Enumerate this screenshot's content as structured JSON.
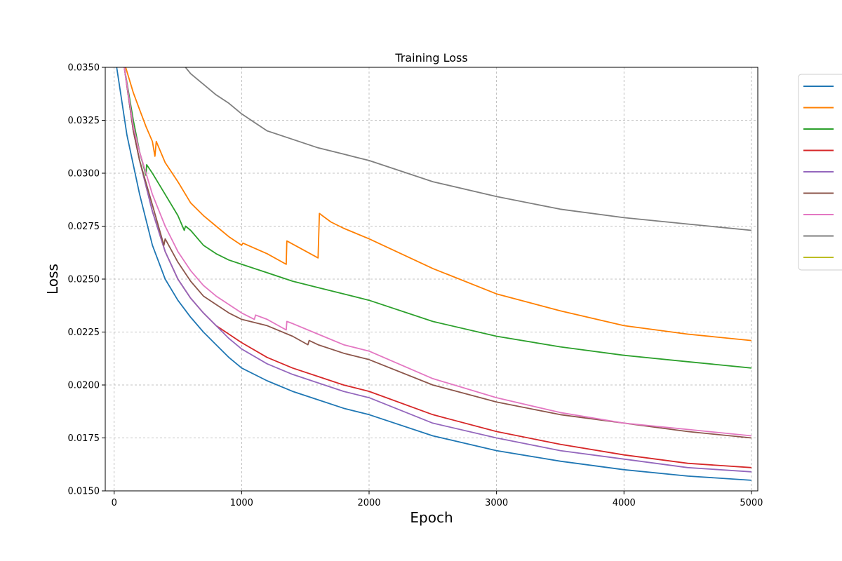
{
  "chart_data": {
    "type": "line",
    "title": "Training Loss",
    "xlabel": "Epoch",
    "ylabel": "Loss",
    "xlim": [
      -70,
      5050
    ],
    "ylim": [
      0.015,
      0.035
    ],
    "xticks": [
      0,
      1000,
      2000,
      3000,
      4000,
      5000
    ],
    "xtick_labels": [
      "0",
      "1000",
      "2000",
      "3000",
      "4000",
      "5000"
    ],
    "yticks": [
      0.015,
      0.0175,
      0.02,
      0.0225,
      0.025,
      0.0275,
      0.03,
      0.0325,
      0.035
    ],
    "ytick_labels": [
      "0.0150",
      "0.0175",
      "0.0200",
      "0.0225",
      "0.0250",
      "0.0275",
      "0.0300",
      "0.0325",
      "0.0350"
    ],
    "grid": true,
    "legend_position": "outside-right",
    "series": [
      {
        "color": "#1f77b4",
        "points": [
          [
            20,
            0.035
          ],
          [
            50,
            0.0338
          ],
          [
            100,
            0.0318
          ],
          [
            200,
            0.029
          ],
          [
            300,
            0.0266
          ],
          [
            400,
            0.025
          ],
          [
            500,
            0.024
          ],
          [
            600,
            0.0232
          ],
          [
            700,
            0.0225
          ],
          [
            800,
            0.0219
          ],
          [
            900,
            0.0213
          ],
          [
            1000,
            0.0208
          ],
          [
            1200,
            0.0202
          ],
          [
            1400,
            0.0197
          ],
          [
            1600,
            0.0193
          ],
          [
            1800,
            0.0189
          ],
          [
            2000,
            0.0186
          ],
          [
            2500,
            0.0176
          ],
          [
            3000,
            0.0169
          ],
          [
            3500,
            0.0164
          ],
          [
            4000,
            0.016
          ],
          [
            4500,
            0.0157
          ],
          [
            5000,
            0.0155
          ]
        ]
      },
      {
        "color": "#ff7f00",
        "points": [
          [
            90,
            0.035
          ],
          [
            150,
            0.0338
          ],
          [
            200,
            0.033
          ],
          [
            250,
            0.0322
          ],
          [
            300,
            0.0315
          ],
          [
            320,
            0.0308
          ],
          [
            330,
            0.0315
          ],
          [
            400,
            0.0305
          ],
          [
            500,
            0.0296
          ],
          [
            600,
            0.0286
          ],
          [
            700,
            0.028
          ],
          [
            800,
            0.0275
          ],
          [
            900,
            0.027
          ],
          [
            1000,
            0.0266
          ],
          [
            1010,
            0.0267
          ],
          [
            1200,
            0.0262
          ],
          [
            1350,
            0.0257
          ],
          [
            1355,
            0.0268
          ],
          [
            1600,
            0.026
          ],
          [
            1610,
            0.0281
          ],
          [
            1700,
            0.0277
          ],
          [
            1800,
            0.0274
          ],
          [
            2000,
            0.0269
          ],
          [
            2500,
            0.0255
          ],
          [
            3000,
            0.0243
          ],
          [
            3500,
            0.0235
          ],
          [
            4000,
            0.0228
          ],
          [
            4500,
            0.0224
          ],
          [
            5000,
            0.0221
          ]
        ]
      },
      {
        "color": "#2ca02c",
        "points": [
          [
            80,
            0.035
          ],
          [
            150,
            0.0325
          ],
          [
            200,
            0.031
          ],
          [
            250,
            0.0299
          ],
          [
            255,
            0.0304
          ],
          [
            300,
            0.03
          ],
          [
            400,
            0.029
          ],
          [
            500,
            0.028
          ],
          [
            550,
            0.0273
          ],
          [
            560,
            0.0275
          ],
          [
            600,
            0.0273
          ],
          [
            700,
            0.0266
          ],
          [
            800,
            0.0262
          ],
          [
            900,
            0.0259
          ],
          [
            1000,
            0.0257
          ],
          [
            1200,
            0.0253
          ],
          [
            1400,
            0.0249
          ],
          [
            1600,
            0.0246
          ],
          [
            1800,
            0.0243
          ],
          [
            2000,
            0.024
          ],
          [
            2500,
            0.023
          ],
          [
            3000,
            0.0223
          ],
          [
            3500,
            0.0218
          ],
          [
            4000,
            0.0214
          ],
          [
            4500,
            0.0211
          ],
          [
            5000,
            0.0208
          ]
        ]
      },
      {
        "color": "#d62728",
        "points": [
          [
            80,
            0.035
          ],
          [
            150,
            0.032
          ],
          [
            200,
            0.0306
          ],
          [
            300,
            0.0282
          ],
          [
            400,
            0.0263
          ],
          [
            500,
            0.025
          ],
          [
            600,
            0.0241
          ],
          [
            700,
            0.0234
          ],
          [
            800,
            0.0228
          ],
          [
            900,
            0.0224
          ],
          [
            1000,
            0.022
          ],
          [
            1200,
            0.0213
          ],
          [
            1400,
            0.0208
          ],
          [
            1600,
            0.0204
          ],
          [
            1800,
            0.02
          ],
          [
            2000,
            0.0197
          ],
          [
            2500,
            0.0186
          ],
          [
            3000,
            0.0178
          ],
          [
            3500,
            0.0172
          ],
          [
            4000,
            0.0167
          ],
          [
            4500,
            0.0163
          ],
          [
            5000,
            0.0161
          ]
        ]
      },
      {
        "color": "#9467bd",
        "points": [
          [
            80,
            0.035
          ],
          [
            150,
            0.032
          ],
          [
            200,
            0.0306
          ],
          [
            300,
            0.0282
          ],
          [
            400,
            0.0263
          ],
          [
            500,
            0.025
          ],
          [
            600,
            0.0241
          ],
          [
            700,
            0.0234
          ],
          [
            800,
            0.0228
          ],
          [
            900,
            0.0222
          ],
          [
            1000,
            0.0217
          ],
          [
            1200,
            0.021
          ],
          [
            1400,
            0.0205
          ],
          [
            1600,
            0.0201
          ],
          [
            1800,
            0.0197
          ],
          [
            2000,
            0.0194
          ],
          [
            2500,
            0.0182
          ],
          [
            3000,
            0.0175
          ],
          [
            3500,
            0.0169
          ],
          [
            4000,
            0.0165
          ],
          [
            4500,
            0.0161
          ],
          [
            5000,
            0.0159
          ]
        ]
      },
      {
        "color": "#8c564b",
        "points": [
          [
            80,
            0.035
          ],
          [
            150,
            0.032
          ],
          [
            200,
            0.0306
          ],
          [
            300,
            0.0285
          ],
          [
            390,
            0.0266
          ],
          [
            400,
            0.0269
          ],
          [
            500,
            0.0258
          ],
          [
            600,
            0.0249
          ],
          [
            700,
            0.0242
          ],
          [
            800,
            0.0238
          ],
          [
            900,
            0.0234
          ],
          [
            1000,
            0.0231
          ],
          [
            1200,
            0.0228
          ],
          [
            1400,
            0.0223
          ],
          [
            1520,
            0.0219
          ],
          [
            1530,
            0.0221
          ],
          [
            1600,
            0.0219
          ],
          [
            1800,
            0.0215
          ],
          [
            2000,
            0.0212
          ],
          [
            2500,
            0.02
          ],
          [
            3000,
            0.0192
          ],
          [
            3500,
            0.0186
          ],
          [
            4000,
            0.0182
          ],
          [
            4500,
            0.0178
          ],
          [
            5000,
            0.0175
          ]
        ]
      },
      {
        "color": "#e377c2",
        "points": [
          [
            80,
            0.035
          ],
          [
            150,
            0.0322
          ],
          [
            200,
            0.031
          ],
          [
            300,
            0.029
          ],
          [
            400,
            0.0275
          ],
          [
            500,
            0.0263
          ],
          [
            600,
            0.0254
          ],
          [
            700,
            0.0247
          ],
          [
            800,
            0.0242
          ],
          [
            900,
            0.0238
          ],
          [
            1000,
            0.0234
          ],
          [
            1100,
            0.0231
          ],
          [
            1110,
            0.0233
          ],
          [
            1200,
            0.0231
          ],
          [
            1350,
            0.0226
          ],
          [
            1355,
            0.023
          ],
          [
            1400,
            0.0229
          ],
          [
            1600,
            0.0224
          ],
          [
            1800,
            0.0219
          ],
          [
            2000,
            0.0216
          ],
          [
            2500,
            0.0203
          ],
          [
            3000,
            0.0194
          ],
          [
            3500,
            0.0187
          ],
          [
            4000,
            0.0182
          ],
          [
            4500,
            0.0179
          ],
          [
            5000,
            0.0176
          ]
        ]
      },
      {
        "color": "#7f7f7f",
        "points": [
          [
            560,
            0.035
          ],
          [
            600,
            0.0347
          ],
          [
            700,
            0.0342
          ],
          [
            800,
            0.0337
          ],
          [
            900,
            0.0333
          ],
          [
            1000,
            0.0328
          ],
          [
            1100,
            0.0324
          ],
          [
            1200,
            0.032
          ],
          [
            1400,
            0.0316
          ],
          [
            1600,
            0.0312
          ],
          [
            1800,
            0.0309
          ],
          [
            2000,
            0.0306
          ],
          [
            2500,
            0.0296
          ],
          [
            3000,
            0.0289
          ],
          [
            3500,
            0.0283
          ],
          [
            4000,
            0.0279
          ],
          [
            4500,
            0.0276
          ],
          [
            5000,
            0.0273
          ]
        ]
      },
      {
        "color": "#bcbd22",
        "points": []
      }
    ]
  }
}
